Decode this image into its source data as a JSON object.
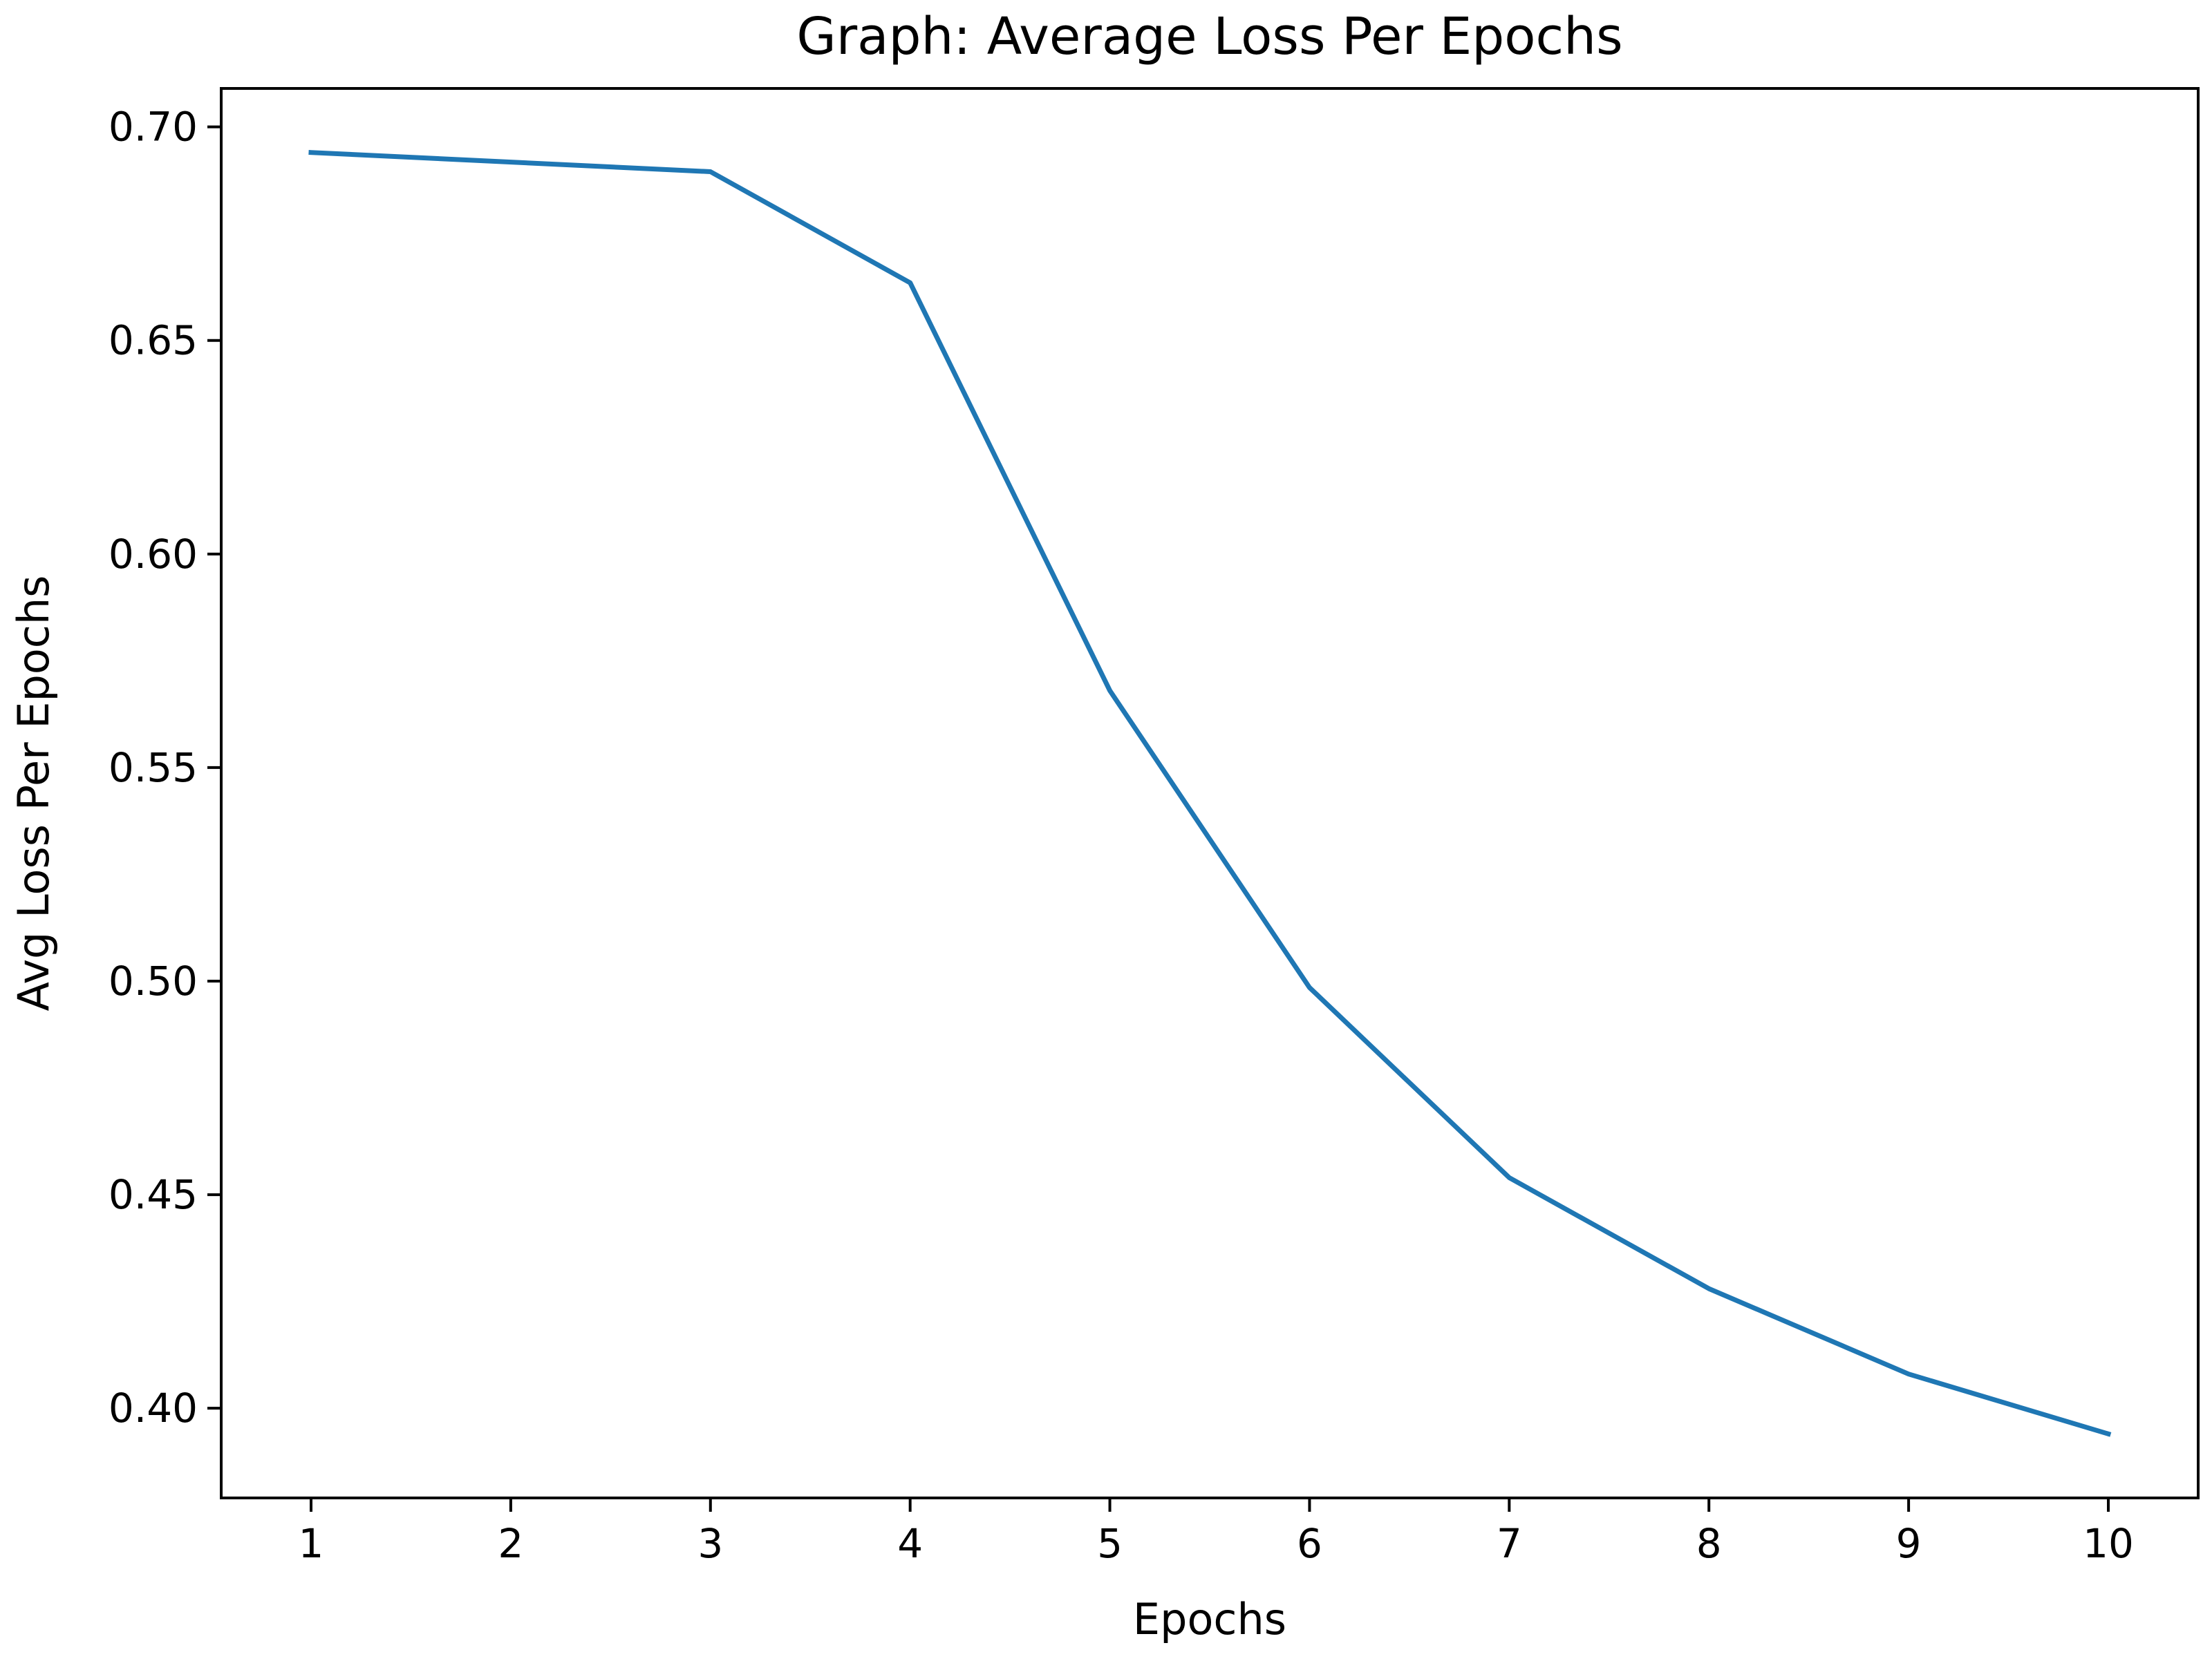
{
  "chart_data": {
    "type": "line",
    "title": "Graph: Average Loss Per Epochs",
    "xlabel": "Epochs",
    "ylabel": "Avg Loss Per Epochs",
    "x": [
      1,
      3,
      4,
      5,
      6,
      7,
      8,
      9,
      10
    ],
    "series": [
      {
        "values": [
          0.694,
          0.6895,
          0.6635,
          0.568,
          0.4985,
          0.454,
          0.428,
          0.408,
          0.394
        ],
        "color": "#1f77b4"
      }
    ],
    "xlim": [
      0.55,
      10.45
    ],
    "ylim": [
      0.379,
      0.709
    ],
    "xticks": [
      1,
      2,
      3,
      4,
      5,
      6,
      7,
      8,
      9,
      10
    ],
    "xtick_labels": [
      "1",
      "2",
      "3",
      "4",
      "5",
      "6",
      "7",
      "8",
      "9",
      "10"
    ],
    "yticks": [
      0.4,
      0.45,
      0.5,
      0.55,
      0.6,
      0.65,
      0.7
    ],
    "ytick_labels": [
      "0.40",
      "0.45",
      "0.50",
      "0.55",
      "0.60",
      "0.65",
      "0.70"
    ],
    "grid": false,
    "legend": false
  }
}
